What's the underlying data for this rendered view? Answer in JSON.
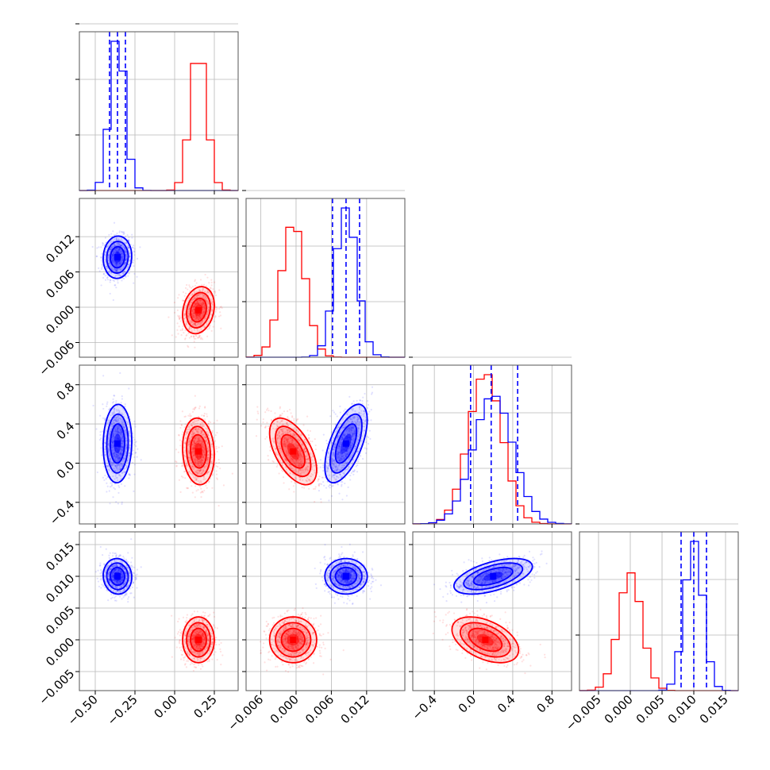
{
  "chart_data": {
    "type": "scatter",
    "kind": "corner-plot",
    "parameters": 4,
    "grid": true,
    "colors": {
      "blue": "#0000ff",
      "red": "#ff0000"
    },
    "series": [
      {
        "color": "#0000ff",
        "means": [
          -0.36,
          0.0085,
          0.2,
          0.01
        ],
        "sds": [
          0.045,
          0.0018,
          0.2,
          0.0014
        ],
        "quantiles": [
          [
            -0.41,
            -0.36,
            -0.31
          ],
          [
            0.0062,
            0.0085,
            0.0108
          ],
          [
            -0.03,
            0.18,
            0.45
          ],
          [
            0.008,
            0.01,
            0.012
          ]
        ],
        "correlations": {
          "0-1": 0.05,
          "0-2": 0.05,
          "0-3": -0.05,
          "1-2": 0.6,
          "1-3": 0.0,
          "2-3": 0.55
        }
      },
      {
        "color": "#ff0000",
        "means": [
          0.15,
          -0.0005,
          0.12,
          0.0
        ],
        "sds": [
          0.05,
          0.002,
          0.17,
          0.0018
        ],
        "correlations": {
          "0-1": 0.2,
          "0-2": -0.1,
          "0-3": 0.0,
          "1-2": -0.55,
          "1-3": 0.0,
          "2-3": -0.45
        }
      }
    ],
    "axes": [
      {
        "range": [
          -0.6,
          0.4
        ],
        "ticks": [
          -0.5,
          -0.25,
          0.0,
          0.25
        ],
        "tick_labels": [
          "−0.50",
          "−0.25",
          "0.00",
          "0.25"
        ]
      },
      {
        "range": [
          -0.0085,
          0.0185
        ],
        "ticks": [
          -0.006,
          0.0,
          0.006,
          0.012
        ],
        "tick_labels": [
          "−0.006",
          "0.000",
          "0.006",
          "0.012"
        ]
      },
      {
        "range": [
          -0.62,
          1.0
        ],
        "ticks": [
          -0.4,
          0.0,
          0.4,
          0.8
        ],
        "tick_labels": [
          "−0.4",
          "0.0",
          "0.4",
          "0.8"
        ]
      },
      {
        "range": [
          -0.008,
          0.017
        ],
        "ticks": [
          -0.005,
          0.0,
          0.005,
          0.01,
          0.015
        ],
        "tick_labels": [
          "−0.005",
          "0.000",
          "0.005",
          "0.010",
          "0.015"
        ]
      }
    ],
    "title": "",
    "xlabel": "",
    "ylabel": ""
  }
}
